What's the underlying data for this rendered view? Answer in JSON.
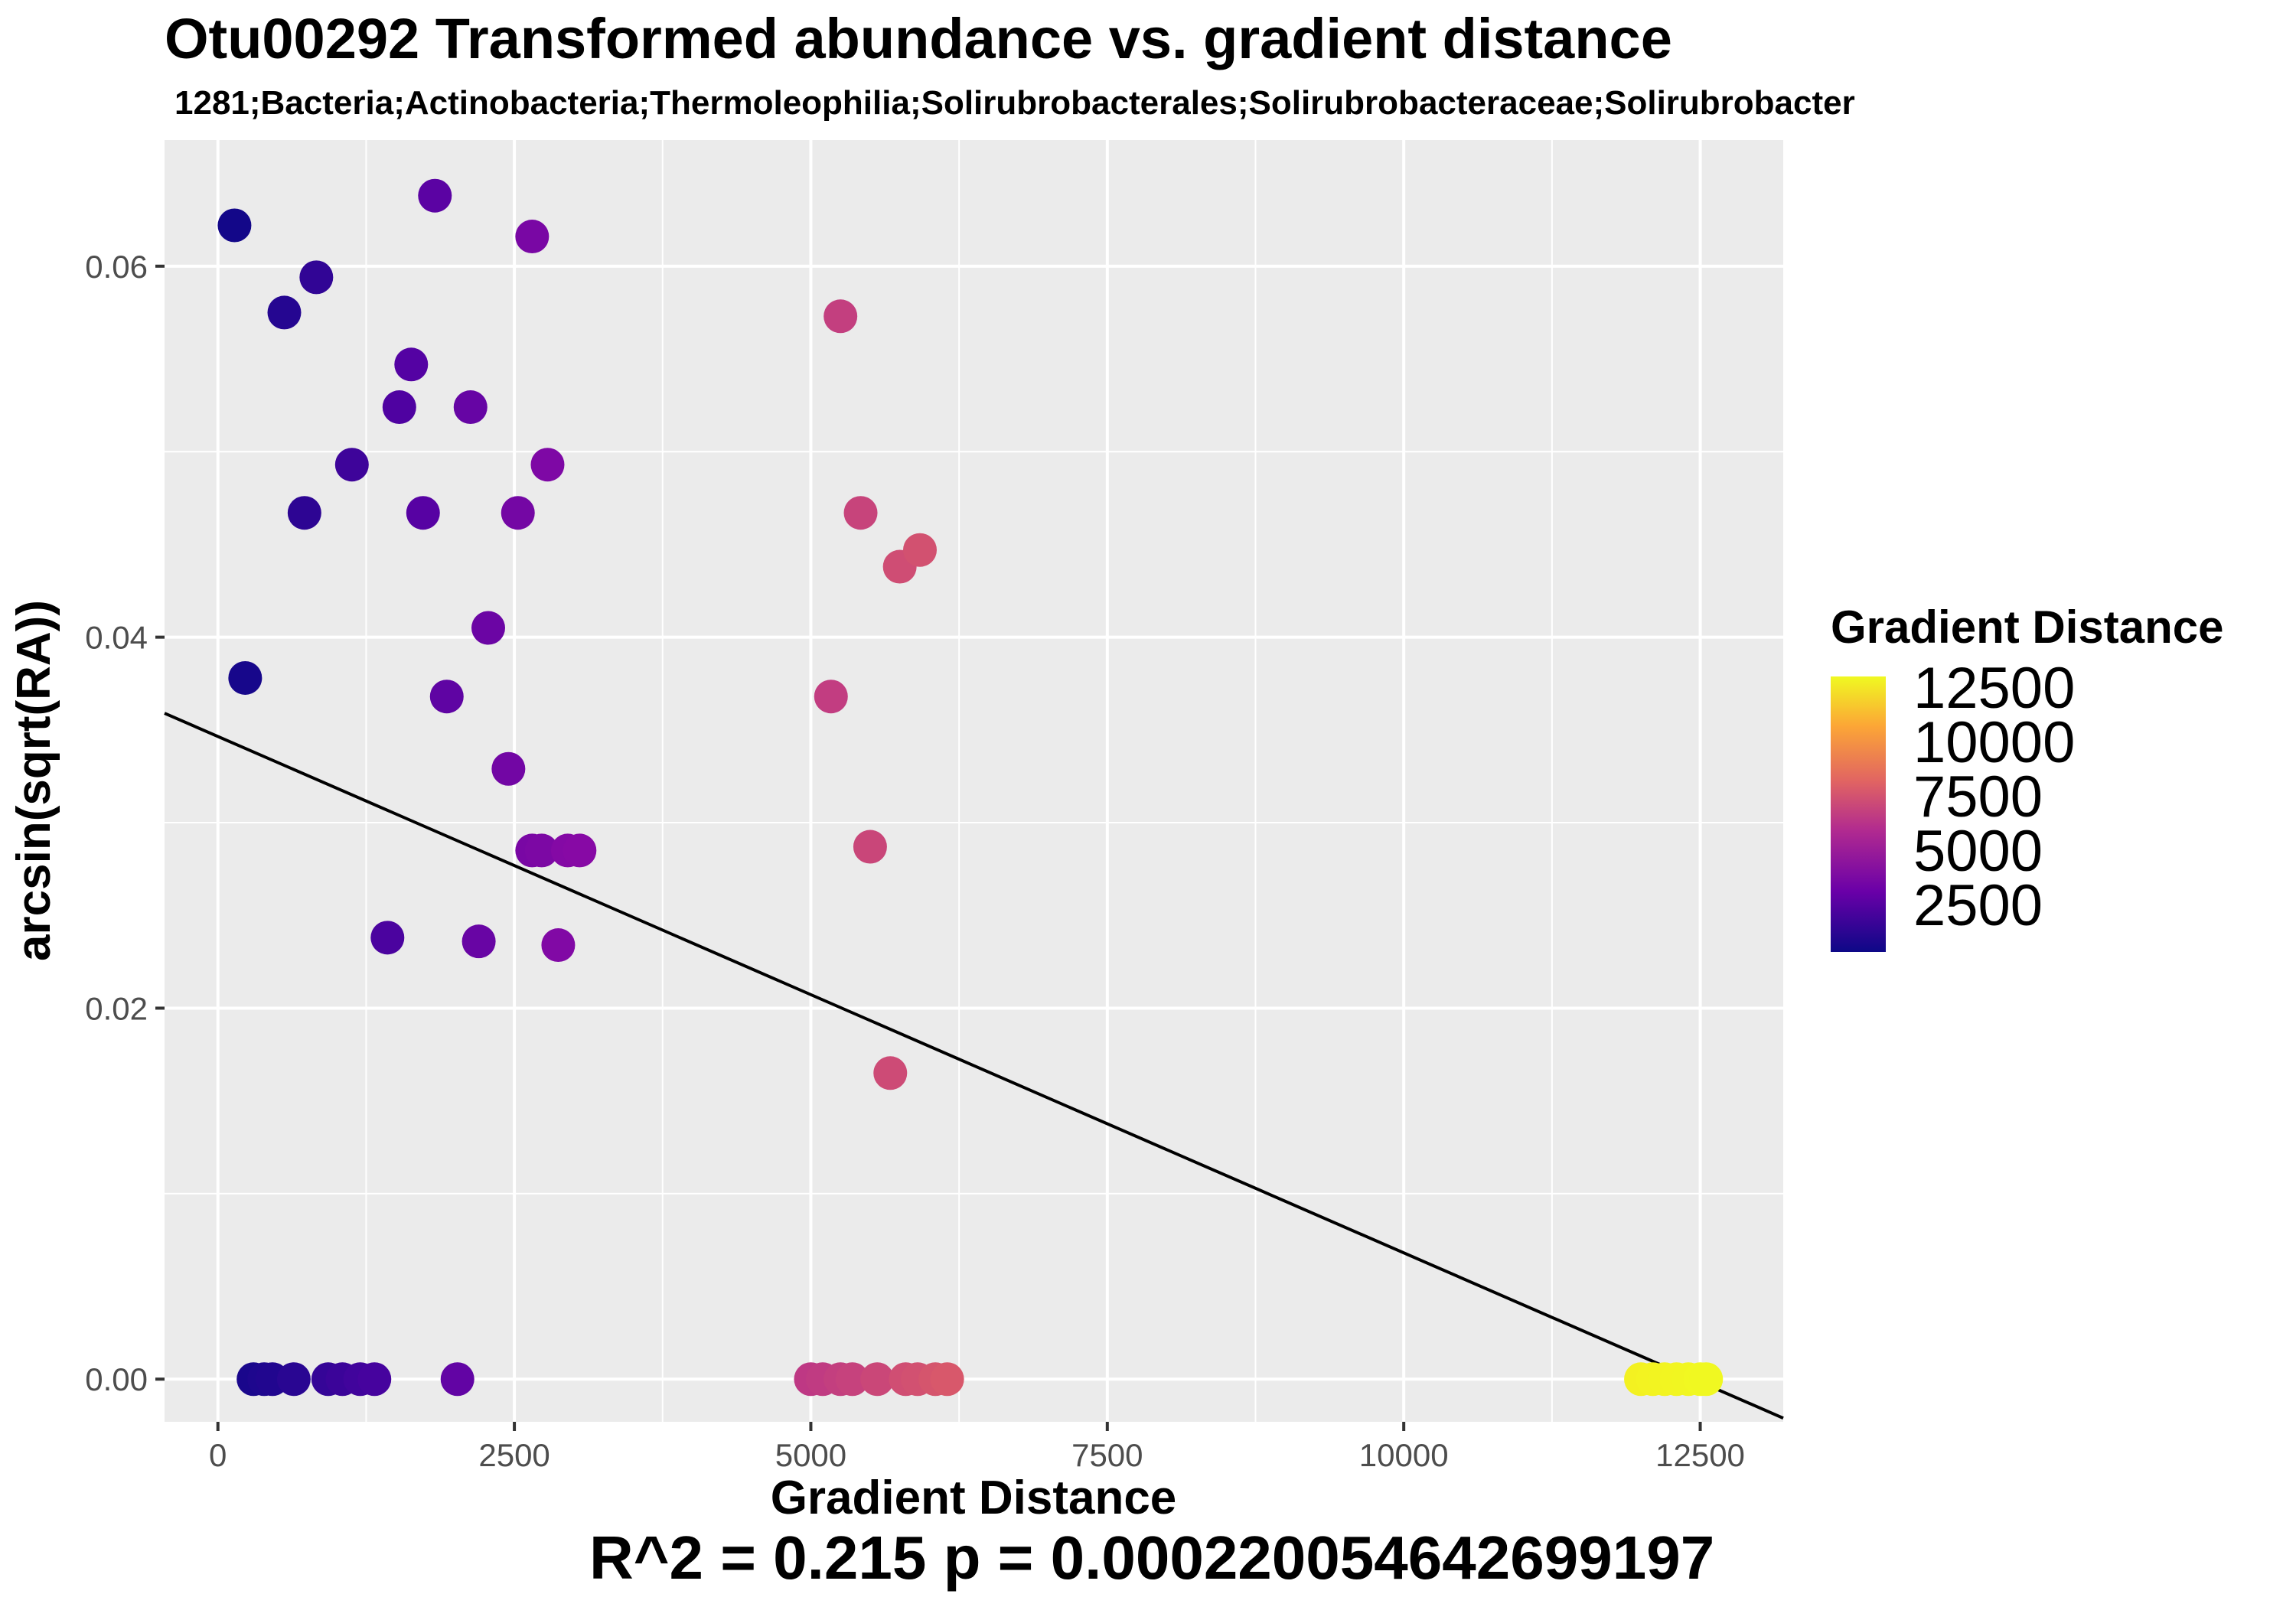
{
  "chart_data": {
    "type": "scatter",
    "title": "Otu00292 Transformed abundance vs. gradient distance",
    "subtitle": "1281;Bacteria;Actinobacteria;Thermoleophilia;Solirubrobacterales;Solirubrobacteraceae;Solirubrobacter",
    "xlabel": "Gradient Distance",
    "ylabel": "arcsin(sqrt(RA))",
    "xlim": [
      -450,
      13200
    ],
    "ylim": [
      -0.0023,
      0.0668
    ],
    "x_ticks": [
      0,
      2500,
      5000,
      7500,
      10000,
      12500
    ],
    "x_tick_labels": [
      "0",
      "2500",
      "5000",
      "7500",
      "10000",
      "12500"
    ],
    "y_ticks": [
      0,
      0.02,
      0.04,
      0.06
    ],
    "y_tick_labels": [
      "0.00",
      "0.02",
      "0.04",
      "0.06"
    ],
    "grid": true,
    "color_scale": "plasma",
    "color_range": [
      0,
      12600
    ],
    "legend": {
      "title": "Gradient Distance",
      "labels": [
        "12500",
        "10000",
        "7500",
        "5000",
        "2500"
      ],
      "placement": "right"
    },
    "points": [
      {
        "x": 140,
        "y": 0.0622
      },
      {
        "x": 230,
        "y": 0.0378
      },
      {
        "x": 560,
        "y": 0.0575
      },
      {
        "x": 830,
        "y": 0.0594
      },
      {
        "x": 730,
        "y": 0.0467
      },
      {
        "x": 1130,
        "y": 0.0493
      },
      {
        "x": 1530,
        "y": 0.0524
      },
      {
        "x": 1630,
        "y": 0.0547
      },
      {
        "x": 1730,
        "y": 0.0467
      },
      {
        "x": 1830,
        "y": 0.0638
      },
      {
        "x": 2130,
        "y": 0.0524
      },
      {
        "x": 2650,
        "y": 0.0616
      },
      {
        "x": 2530,
        "y": 0.0467
      },
      {
        "x": 2780,
        "y": 0.0493
      },
      {
        "x": 2280,
        "y": 0.0405
      },
      {
        "x": 1930,
        "y": 0.0368
      },
      {
        "x": 2450,
        "y": 0.0329
      },
      {
        "x": 2650,
        "y": 0.0285
      },
      {
        "x": 2730,
        "y": 0.0285
      },
      {
        "x": 2950,
        "y": 0.0285
      },
      {
        "x": 3050,
        "y": 0.0285
      },
      {
        "x": 1430,
        "y": 0.0238
      },
      {
        "x": 2200,
        "y": 0.0236
      },
      {
        "x": 2870,
        "y": 0.0234
      },
      {
        "x": 5250,
        "y": 0.0573
      },
      {
        "x": 5420,
        "y": 0.0467
      },
      {
        "x": 5750,
        "y": 0.0438
      },
      {
        "x": 5920,
        "y": 0.0447
      },
      {
        "x": 5170,
        "y": 0.0368
      },
      {
        "x": 5500,
        "y": 0.0287
      },
      {
        "x": 5670,
        "y": 0.0165
      },
      {
        "x": 300,
        "y": 0
      },
      {
        "x": 390,
        "y": 0
      },
      {
        "x": 460,
        "y": 0
      },
      {
        "x": 640,
        "y": 0
      },
      {
        "x": 930,
        "y": 0
      },
      {
        "x": 1050,
        "y": 0
      },
      {
        "x": 1200,
        "y": 0
      },
      {
        "x": 1320,
        "y": 0
      },
      {
        "x": 2020,
        "y": 0
      },
      {
        "x": 5000,
        "y": 0
      },
      {
        "x": 5100,
        "y": 0
      },
      {
        "x": 5250,
        "y": 0
      },
      {
        "x": 5350,
        "y": 0
      },
      {
        "x": 5560,
        "y": 0
      },
      {
        "x": 5800,
        "y": 0
      },
      {
        "x": 5900,
        "y": 0
      },
      {
        "x": 6050,
        "y": 0
      },
      {
        "x": 6150,
        "y": 0
      },
      {
        "x": 12000,
        "y": 0
      },
      {
        "x": 12100,
        "y": 0
      },
      {
        "x": 12200,
        "y": 0
      },
      {
        "x": 12300,
        "y": 0
      },
      {
        "x": 12400,
        "y": 0
      },
      {
        "x": 12500,
        "y": 0
      },
      {
        "x": 12550,
        "y": 0
      }
    ],
    "regression_line": {
      "x": [
        -450,
        13200
      ],
      "y": [
        0.0359,
        -0.0021
      ]
    },
    "annotation": "R^2 =  0.215 p = 0.000220054642699197"
  }
}
